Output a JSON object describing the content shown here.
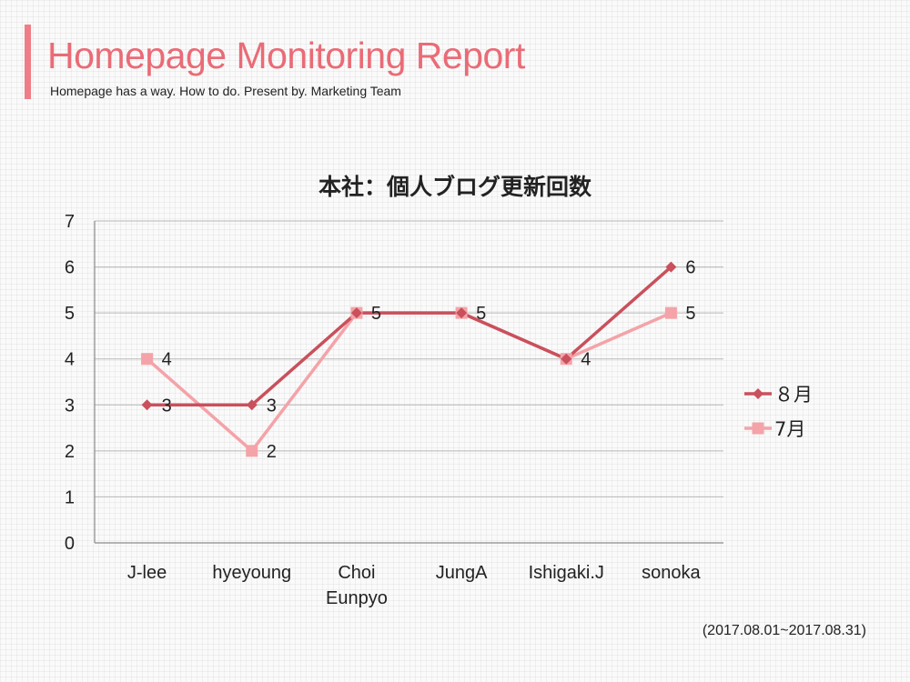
{
  "header": {
    "title": "Homepage Monitoring Report",
    "subtitle": "Homepage has a way. How to do. Present by. Marketing Team"
  },
  "period_note": "(2017.08.01~2017.08.31)",
  "colors": {
    "accent": "#ef7d87",
    "series_august": "#c9505c",
    "series_july": "#f4a3a8"
  },
  "chart_data": {
    "type": "line",
    "title": "本社：個人ブログ更新回数",
    "categories": [
      [
        "J-lee"
      ],
      [
        "hyeyoung"
      ],
      [
        "Choi",
        "Eunpyo"
      ],
      [
        "JungA"
      ],
      [
        "Ishigaki.J"
      ],
      [
        "sonoka"
      ]
    ],
    "series": [
      {
        "name": "８月",
        "values": [
          3,
          3,
          5,
          5,
          4,
          6
        ],
        "marker": "diamond",
        "color": "#c9505c"
      },
      {
        "name": "7月",
        "values": [
          4,
          2,
          5,
          5,
          4,
          5
        ],
        "marker": "square",
        "color": "#f4a3a8"
      }
    ],
    "ylim": [
      0,
      7
    ],
    "yticks": [
      0,
      1,
      2,
      3,
      4,
      5,
      6,
      7
    ],
    "grid": true,
    "legend": "right",
    "data_labels": [
      [
        "3",
        "3",
        "",
        "",
        "",
        "6"
      ],
      [
        "4",
        "2",
        "5",
        "5",
        "4",
        "5"
      ]
    ]
  }
}
